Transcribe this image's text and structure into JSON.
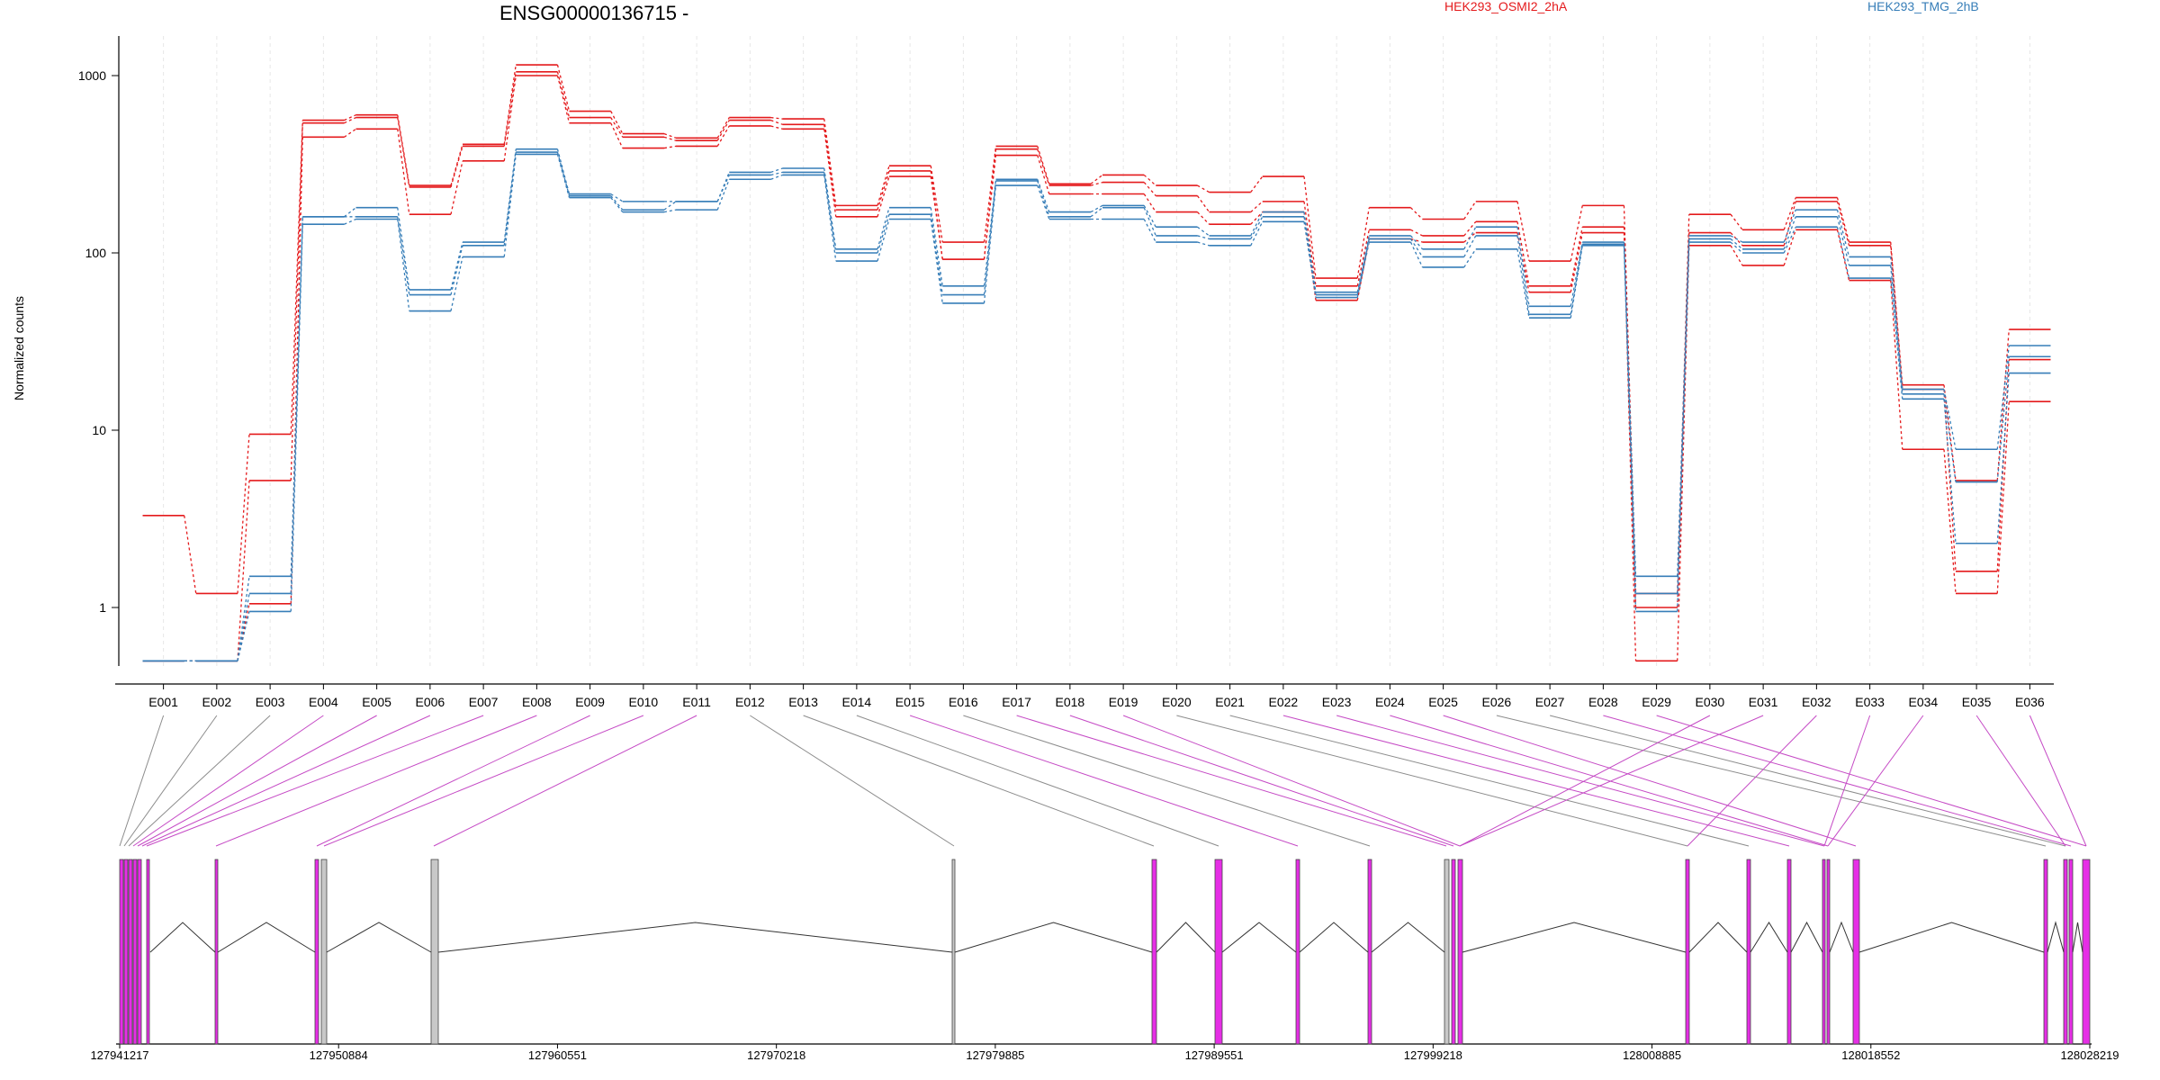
{
  "chart_data": {
    "type": "line",
    "title": "ENSG00000136715 -",
    "ylabel": "Normalized counts",
    "xlabel": "",
    "yscale": "log",
    "ylim": [
      0.5,
      1500
    ],
    "y_ticks": [
      "1",
      "10",
      "100",
      "1000"
    ],
    "y_tick_values": [
      1,
      10,
      100,
      1000
    ],
    "grid": "vertical dashed at exon bins",
    "legend": [
      {
        "name": "HEK293_OSMI2_2hA",
        "color": "#e41a1c"
      },
      {
        "name": "HEK293_TMG_2hB",
        "color": "#377eb8"
      }
    ],
    "categories": [
      "E001",
      "E002",
      "E003",
      "E004",
      "E005",
      "E006",
      "E007",
      "E008",
      "E009",
      "E010",
      "E011",
      "E012",
      "E013",
      "E014",
      "E015",
      "E016",
      "E017",
      "E018",
      "E019",
      "E020",
      "E021",
      "E022",
      "E023",
      "E024",
      "E025",
      "E026",
      "E027",
      "E028",
      "E029",
      "E030",
      "E031",
      "E032",
      "E033",
      "E034",
      "E035",
      "E036"
    ],
    "series": [
      {
        "group": "HEK293_OSMI2_2hA",
        "color": "#e41a1c",
        "values": [
          3.3,
          1.2,
          9.5,
          560,
          600,
          240,
          410,
          1150,
          630,
          470,
          445,
          580,
          570,
          185,
          310,
          115,
          400,
          245,
          275,
          240,
          220,
          270,
          72,
          180,
          155,
          195,
          90,
          185,
          1.2,
          165,
          135,
          205,
          115,
          18,
          5.2,
          37
        ]
      },
      {
        "group": "HEK293_OSMI2_2hA",
        "color": "#e41a1c",
        "values": [
          0.5,
          0.5,
          5.2,
          540,
          580,
          235,
          400,
          1050,
          580,
          450,
          430,
          560,
          530,
          175,
          290,
          92,
          385,
          240,
          250,
          210,
          170,
          195,
          65,
          135,
          125,
          150,
          65,
          140,
          1.0,
          130,
          110,
          195,
          110,
          17,
          1.6,
          25
        ]
      },
      {
        "group": "HEK293_OSMI2_2hA",
        "color": "#e41a1c",
        "values": [
          0.5,
          0.5,
          1.05,
          450,
          500,
          165,
          330,
          1000,
          540,
          390,
          400,
          520,
          500,
          160,
          270,
          92,
          355,
          215,
          215,
          170,
          145,
          170,
          54,
          120,
          115,
          130,
          60,
          130,
          0.5,
          110,
          85,
          135,
          70,
          7.8,
          1.2,
          14.5
        ]
      },
      {
        "group": "HEK293_TMG_2hB",
        "color": "#377eb8",
        "values": [
          0.5,
          0.5,
          1.5,
          160,
          180,
          62,
          115,
          385,
          215,
          195,
          195,
          285,
          300,
          105,
          180,
          65,
          260,
          170,
          185,
          140,
          125,
          170,
          60,
          125,
          105,
          140,
          50,
          115,
          1.5,
          125,
          115,
          175,
          95,
          17,
          7.8,
          30
        ]
      },
      {
        "group": "HEK293_TMG_2hB",
        "color": "#377eb8",
        "values": [
          0.5,
          0.5,
          1.2,
          160,
          160,
          58,
          110,
          370,
          210,
          175,
          195,
          275,
          285,
          100,
          165,
          58,
          255,
          160,
          180,
          125,
          120,
          160,
          58,
          120,
          95,
          125,
          45,
          112,
          1.2,
          120,
          105,
          160,
          85,
          16,
          5.1,
          26
        ]
      },
      {
        "group": "HEK293_TMG_2hB",
        "color": "#377eb8",
        "values": [
          0.5,
          0.5,
          0.95,
          145,
          155,
          47,
          95,
          360,
          205,
          170,
          175,
          260,
          275,
          90,
          155,
          52,
          240,
          155,
          155,
          115,
          110,
          150,
          56,
          115,
          83,
          105,
          43,
          110,
          0.95,
          115,
          100,
          140,
          72,
          15,
          2.3,
          21
        ]
      }
    ]
  },
  "gene_model": {
    "coordinates": [
      "127941217",
      "127950884",
      "127960551",
      "127970218",
      "127979885",
      "127989551",
      "127999218",
      "128008885",
      "128018552",
      "128028219"
    ]
  }
}
